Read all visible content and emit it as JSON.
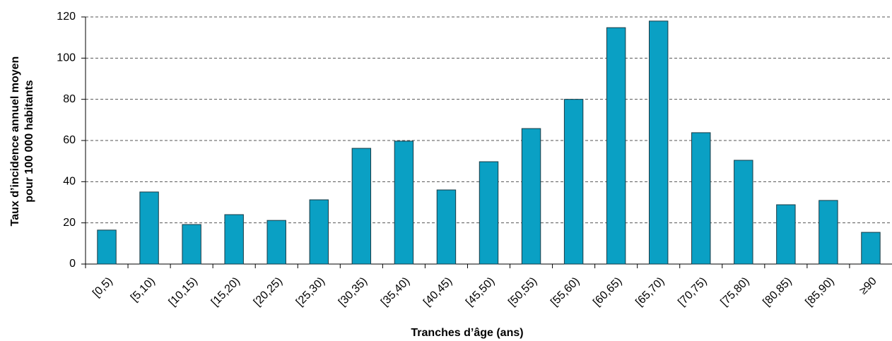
{
  "chart_data": {
    "type": "bar",
    "ylabel": [
      "Taux d’incidence annuel moyen",
      "pour 100 000 habitants"
    ],
    "xlabel": "Tranches d’âge (ans)",
    "categories": [
      "[0,5)",
      "[5,10)",
      "[10,15)",
      "[15,20)",
      "[20,25)",
      "[25,30)",
      "[30,35)",
      "[35,40)",
      "[40,45)",
      "[45,50)",
      "[50,55)",
      "[55,60)",
      "[60,65)",
      "[65,70)",
      "[70,75)",
      "[75,80)",
      "[80,85)",
      "[85,90)",
      "≥90"
    ],
    "values": [
      16.5,
      35,
      19.2,
      24,
      21.2,
      31.2,
      56.2,
      59.7,
      36,
      49.7,
      65.8,
      80,
      114.8,
      118,
      63.8,
      50.4,
      28.8,
      30.9,
      15.4
    ],
    "color": "#0aa0c4",
    "ylim": [
      0,
      120
    ],
    "yticks": [
      0,
      20,
      40,
      60,
      80,
      100,
      120
    ],
    "grid": true
  }
}
